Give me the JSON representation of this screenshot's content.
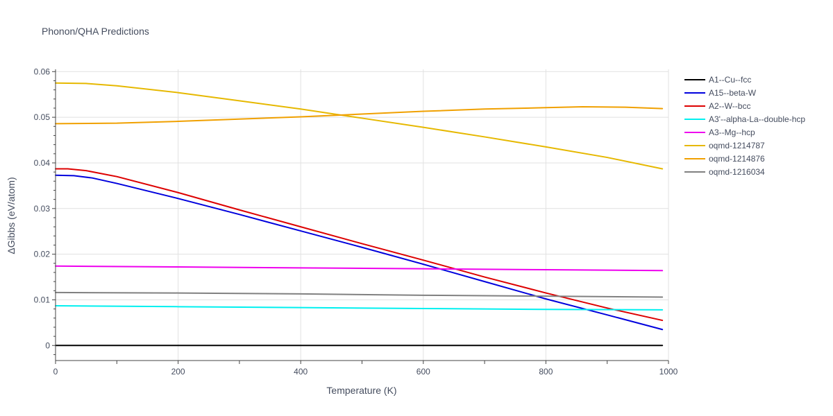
{
  "chart_data": {
    "type": "line",
    "title": "Phonon/QHA Predictions",
    "xlabel": "Temperature (K)",
    "ylabel": "ΔGibbs (eV/atom)",
    "xlim": [
      0,
      1000
    ],
    "ylim": [
      -0.0033,
      0.0605
    ],
    "x_ticks": [
      0,
      200,
      400,
      600,
      800,
      1000
    ],
    "x_tick_labels": [
      "0",
      "200",
      "400",
      "600",
      "800",
      "1000"
    ],
    "y_ticks": [
      0,
      0.01,
      0.02,
      0.03,
      0.04,
      0.05,
      0.06
    ],
    "y_tick_labels": [
      "0",
      "0.01",
      "0.02",
      "0.03",
      "0.04",
      "0.05",
      "0.06"
    ],
    "grid": true,
    "legend_position": "right",
    "series": [
      {
        "name": "A1--Cu--fcc",
        "color": "#000000",
        "x": [
          0,
          990
        ],
        "y": [
          0,
          0
        ]
      },
      {
        "name": "A15--beta-W",
        "color": "#0000dd",
        "x": [
          0,
          30,
          60,
          100,
          200,
          300,
          400,
          500,
          600,
          700,
          800,
          900,
          990
        ],
        "y": [
          0.0373,
          0.0372,
          0.0367,
          0.0355,
          0.0322,
          0.0287,
          0.0251,
          0.0215,
          0.0178,
          0.014,
          0.0102,
          0.0067,
          0.0035
        ]
      },
      {
        "name": "A2--W--bcc",
        "color": "#dd0000",
        "x": [
          0,
          20,
          50,
          100,
          200,
          300,
          400,
          500,
          600,
          700,
          800,
          900,
          990
        ],
        "y": [
          0.0387,
          0.0387,
          0.0383,
          0.037,
          0.0335,
          0.0297,
          0.026,
          0.0223,
          0.0187,
          0.015,
          0.0115,
          0.0082,
          0.0055
        ]
      },
      {
        "name": "A3'--alpha-La--double-hcp",
        "color": "#00f0f0",
        "x": [
          0,
          200,
          400,
          600,
          800,
          990
        ],
        "y": [
          0.0087,
          0.0085,
          0.0083,
          0.0081,
          0.0079,
          0.0078
        ]
      },
      {
        "name": "A3--Mg--hcp",
        "color": "#ee00ee",
        "x": [
          0,
          200,
          400,
          600,
          800,
          990
        ],
        "y": [
          0.0174,
          0.0172,
          0.017,
          0.0168,
          0.0166,
          0.0164
        ]
      },
      {
        "name": "oqmd-1214787",
        "color": "#e6b800",
        "x": [
          0,
          50,
          100,
          200,
          300,
          400,
          500,
          600,
          700,
          800,
          900,
          990
        ],
        "y": [
          0.0575,
          0.0574,
          0.0569,
          0.0554,
          0.0536,
          0.0518,
          0.0498,
          0.0478,
          0.0457,
          0.0435,
          0.0412,
          0.0387
        ]
      },
      {
        "name": "oqmd-1214876",
        "color": "#f0a000",
        "x": [
          0,
          100,
          200,
          300,
          400,
          500,
          600,
          700,
          800,
          860,
          930,
          990
        ],
        "y": [
          0.0486,
          0.0487,
          0.0491,
          0.0496,
          0.0501,
          0.0507,
          0.0513,
          0.0518,
          0.0521,
          0.0523,
          0.0522,
          0.0519
        ]
      },
      {
        "name": "oqmd-1216034",
        "color": "#808080",
        "x": [
          0,
          200,
          400,
          600,
          800,
          990
        ],
        "y": [
          0.0116,
          0.0115,
          0.0113,
          0.011,
          0.0108,
          0.0106
        ]
      }
    ]
  }
}
